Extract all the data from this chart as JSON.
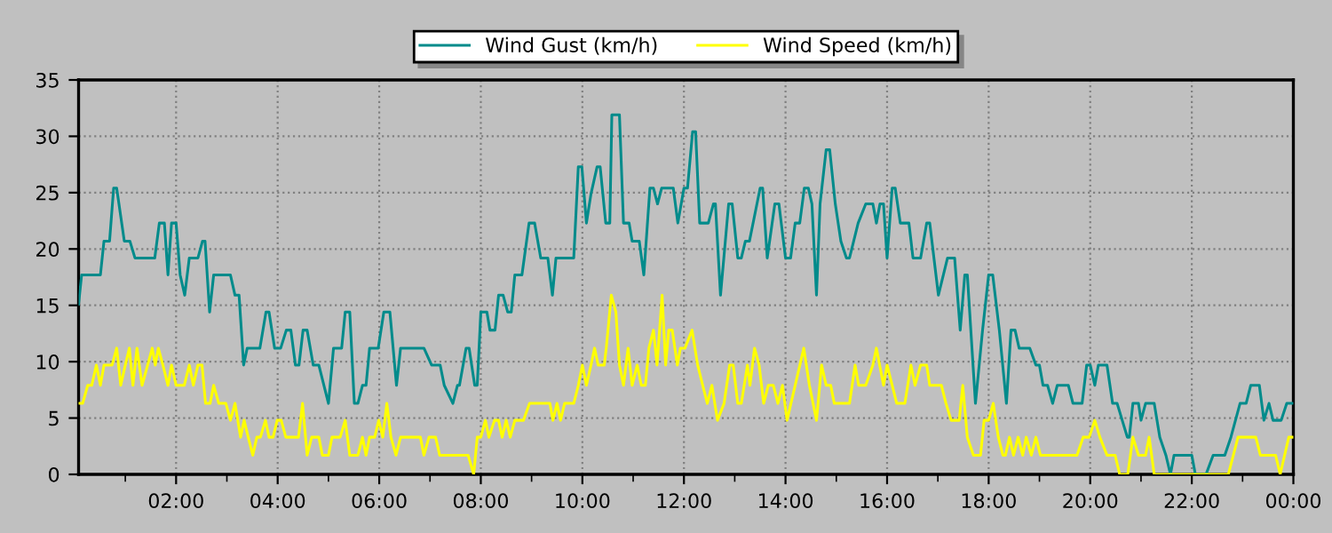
{
  "chart_data": {
    "type": "line",
    "xlim": [
      0.08,
      24
    ],
    "ylim": [
      0,
      35
    ],
    "yticks": [
      0,
      5,
      10,
      15,
      20,
      25,
      30,
      35
    ],
    "xticks": [
      {
        "value": 1,
        "label": null
      },
      {
        "value": 2,
        "label": "02:00"
      },
      {
        "value": 3,
        "label": null
      },
      {
        "value": 4,
        "label": "04:00"
      },
      {
        "value": 5,
        "label": null
      },
      {
        "value": 6,
        "label": "06:00"
      },
      {
        "value": 7,
        "label": null
      },
      {
        "value": 8,
        "label": "08:00"
      },
      {
        "value": 9,
        "label": null
      },
      {
        "value": 10,
        "label": "10:00"
      },
      {
        "value": 11,
        "label": null
      },
      {
        "value": 12,
        "label": "12:00"
      },
      {
        "value": 13,
        "label": null
      },
      {
        "value": 14,
        "label": "14:00"
      },
      {
        "value": 15,
        "label": null
      },
      {
        "value": 16,
        "label": "16:00"
      },
      {
        "value": 17,
        "label": null
      },
      {
        "value": 18,
        "label": "18:00"
      },
      {
        "value": 19,
        "label": null
      },
      {
        "value": 20,
        "label": "20:00"
      },
      {
        "value": 21,
        "label": null
      },
      {
        "value": 22,
        "label": "22:00"
      },
      {
        "value": 23,
        "label": null
      },
      {
        "value": 24,
        "label": "00:00"
      }
    ],
    "grid": true,
    "legend": "top",
    "line_style": "solid",
    "series": [
      {
        "name": "Wind Gust (km/h)",
        "color": "#008b8b",
        "x": [
          0.08,
          0.14,
          0.51,
          0.58,
          0.69,
          0.77,
          0.83,
          0.98,
          1.09,
          1.19,
          1.58,
          1.67,
          1.77,
          1.84,
          1.91,
          2.0,
          2.08,
          2.17,
          2.26,
          2.43,
          2.52,
          2.57,
          2.66,
          2.74,
          3.07,
          3.16,
          3.24,
          3.33,
          3.4,
          3.65,
          3.77,
          3.83,
          3.94,
          4.06,
          4.17,
          4.26,
          4.35,
          4.42,
          4.5,
          4.58,
          4.7,
          4.81,
          5.0,
          5.1,
          5.26,
          5.33,
          5.42,
          5.51,
          5.58,
          5.67,
          5.74,
          5.81,
          5.98,
          6.09,
          6.21,
          6.34,
          6.42,
          6.88,
          7.03,
          7.2,
          7.28,
          7.45,
          7.54,
          7.58,
          7.71,
          7.77,
          7.88,
          7.93,
          8.0,
          8.12,
          8.18,
          8.28,
          8.35,
          8.44,
          8.53,
          8.6,
          8.67,
          8.81,
          8.95,
          9.06,
          9.18,
          9.32,
          9.41,
          9.48,
          9.83,
          9.92,
          9.99,
          10.08,
          10.17,
          10.29,
          10.35,
          10.46,
          10.54,
          10.58,
          10.73,
          10.81,
          10.92,
          10.98,
          11.12,
          11.21,
          11.33,
          11.4,
          11.48,
          11.56,
          11.79,
          11.88,
          12.0,
          12.07,
          12.17,
          12.23,
          12.31,
          12.48,
          12.58,
          12.62,
          12.72,
          12.88,
          12.95,
          13.06,
          13.13,
          13.21,
          13.29,
          13.5,
          13.55,
          13.64,
          13.79,
          13.87,
          14.0,
          14.1,
          14.19,
          14.28,
          14.37,
          14.45,
          14.52,
          14.61,
          14.68,
          14.8,
          14.87,
          14.98,
          15.09,
          15.2,
          15.26,
          15.43,
          15.58,
          15.72,
          15.79,
          15.86,
          15.93,
          16.0,
          16.1,
          16.16,
          16.26,
          16.43,
          16.51,
          16.66,
          16.78,
          16.84,
          17.01,
          17.19,
          17.33,
          17.44,
          17.53,
          17.58,
          17.74,
          17.88,
          18.0,
          18.08,
          18.21,
          18.35,
          18.44,
          18.52,
          18.6,
          18.81,
          18.93,
          19.0,
          19.07,
          19.16,
          19.26,
          19.35,
          19.57,
          19.66,
          19.84,
          19.93,
          20.0,
          20.09,
          20.16,
          20.33,
          20.44,
          20.53,
          20.63,
          20.73,
          20.77,
          20.84,
          20.95,
          21.0,
          21.09,
          21.26,
          21.37,
          21.49,
          21.58,
          21.65,
          22.0,
          22.07,
          22.28,
          22.42,
          22.65,
          22.77,
          22.86,
          22.95,
          23.07,
          23.16,
          23.33,
          23.42,
          23.52,
          23.6,
          23.76,
          23.87,
          23.99
        ],
        "values": [
          15.1,
          17.7,
          17.7,
          20.7,
          20.7,
          25.4,
          25.4,
          20.7,
          20.7,
          19.2,
          19.2,
          22.3,
          22.3,
          17.7,
          22.3,
          22.3,
          17.7,
          15.9,
          19.2,
          19.2,
          20.7,
          20.7,
          14.4,
          17.7,
          17.7,
          15.9,
          15.9,
          9.7,
          11.2,
          11.2,
          14.4,
          14.4,
          11.2,
          11.2,
          12.8,
          12.8,
          9.7,
          9.7,
          12.8,
          12.8,
          9.7,
          9.7,
          6.3,
          11.2,
          11.2,
          14.4,
          14.4,
          6.3,
          6.3,
          7.9,
          7.9,
          11.2,
          11.2,
          14.4,
          14.4,
          7.9,
          11.2,
          11.2,
          9.7,
          9.7,
          7.9,
          6.3,
          7.9,
          7.9,
          11.2,
          11.2,
          7.9,
          7.9,
          14.4,
          14.4,
          12.8,
          12.8,
          15.9,
          15.9,
          14.4,
          14.4,
          17.7,
          17.7,
          22.3,
          22.3,
          19.2,
          19.2,
          15.9,
          19.2,
          19.2,
          27.3,
          27.3,
          22.3,
          24.9,
          27.3,
          27.3,
          22.3,
          22.3,
          31.9,
          31.9,
          22.3,
          22.3,
          20.7,
          20.7,
          17.7,
          25.4,
          25.4,
          24.0,
          25.4,
          25.4,
          22.3,
          25.4,
          25.4,
          30.4,
          30.4,
          22.3,
          22.3,
          24.0,
          24.0,
          15.9,
          24.0,
          24.0,
          19.2,
          19.2,
          20.7,
          20.7,
          25.4,
          25.4,
          19.2,
          24.0,
          24.0,
          19.2,
          19.2,
          22.3,
          22.3,
          25.4,
          25.4,
          24.0,
          15.9,
          24.0,
          28.8,
          28.8,
          24.0,
          20.7,
          19.2,
          19.2,
          22.3,
          24.0,
          24.0,
          22.3,
          24.0,
          24.0,
          19.2,
          25.4,
          25.4,
          22.3,
          22.3,
          19.2,
          19.2,
          22.3,
          22.3,
          15.9,
          19.2,
          19.2,
          12.8,
          17.7,
          17.7,
          6.3,
          12.8,
          17.7,
          17.7,
          12.8,
          6.3,
          12.8,
          12.8,
          11.2,
          11.2,
          9.7,
          9.7,
          7.9,
          7.9,
          6.3,
          7.9,
          7.9,
          6.3,
          6.3,
          9.7,
          9.7,
          7.9,
          9.7,
          9.7,
          6.3,
          6.3,
          4.8,
          3.3,
          3.3,
          6.3,
          6.3,
          4.8,
          6.3,
          6.3,
          3.3,
          1.7,
          0,
          1.7,
          1.7,
          0,
          0,
          1.7,
          1.7,
          3.3,
          4.8,
          6.3,
          6.3,
          7.9,
          7.9,
          4.8,
          6.3,
          4.8,
          4.8,
          6.3,
          6.3
        ]
      },
      {
        "name": "Wind Speed (km/h)",
        "color": "#ffff00",
        "x": [
          0.08,
          0.16,
          0.26,
          0.34,
          0.43,
          0.51,
          0.58,
          0.74,
          0.83,
          0.91,
          1.0,
          1.08,
          1.15,
          1.23,
          1.33,
          1.44,
          1.53,
          1.59,
          1.65,
          1.74,
          1.84,
          1.91,
          2.0,
          2.16,
          2.26,
          2.34,
          2.43,
          2.51,
          2.58,
          2.67,
          2.74,
          2.84,
          2.98,
          3.07,
          3.16,
          3.27,
          3.34,
          3.42,
          3.51,
          3.59,
          3.66,
          3.76,
          3.83,
          3.91,
          3.99,
          4.07,
          4.16,
          4.41,
          4.49,
          4.58,
          4.67,
          4.81,
          4.88,
          5.0,
          5.07,
          5.23,
          5.33,
          5.42,
          5.58,
          5.67,
          5.74,
          5.81,
          5.91,
          5.99,
          6.07,
          6.15,
          6.23,
          6.33,
          6.42,
          6.81,
          6.88,
          6.98,
          7.11,
          7.19,
          7.75,
          7.86,
          7.93,
          8.0,
          8.09,
          8.16,
          8.27,
          8.35,
          8.42,
          8.5,
          8.58,
          8.67,
          8.84,
          8.96,
          9.36,
          9.42,
          9.5,
          9.57,
          9.65,
          9.83,
          9.92,
          10.0,
          10.08,
          10.17,
          10.24,
          10.31,
          10.43,
          10.47,
          10.57,
          10.66,
          10.73,
          10.81,
          10.9,
          10.98,
          11.08,
          11.16,
          11.24,
          11.31,
          11.4,
          11.47,
          11.57,
          11.64,
          11.7,
          11.77,
          11.87,
          11.93,
          12.02,
          12.16,
          12.27,
          12.37,
          12.46,
          12.55,
          12.66,
          12.79,
          12.9,
          12.97,
          13.06,
          13.13,
          13.25,
          13.3,
          13.39,
          13.48,
          13.57,
          13.66,
          13.76,
          13.85,
          13.94,
          14.03,
          14.36,
          14.47,
          14.61,
          14.71,
          14.8,
          14.89,
          14.96,
          15.26,
          15.37,
          15.44,
          15.58,
          15.72,
          15.79,
          15.93,
          16.0,
          16.19,
          16.35,
          16.47,
          16.55,
          16.66,
          16.78,
          16.84,
          17.07,
          17.16,
          17.26,
          17.42,
          17.49,
          17.58,
          17.7,
          17.84,
          17.91,
          18.0,
          18.09,
          18.19,
          18.28,
          18.33,
          18.41,
          18.49,
          18.58,
          18.67,
          18.74,
          18.84,
          18.93,
          19.02,
          19.74,
          19.86,
          19.98,
          20.09,
          20.19,
          20.33,
          20.49,
          20.58,
          20.74,
          20.84,
          20.95,
          21.09,
          21.16,
          21.26,
          22.72,
          22.91,
          23.26,
          23.35,
          23.65,
          23.74,
          23.91,
          23.99
        ],
        "values": [
          6.3,
          6.3,
          7.9,
          7.9,
          9.7,
          7.9,
          9.7,
          9.7,
          11.2,
          7.9,
          9.7,
          11.2,
          7.9,
          11.2,
          7.9,
          9.7,
          11.2,
          9.7,
          11.2,
          9.7,
          7.9,
          9.7,
          7.9,
          7.9,
          9.7,
          7.9,
          9.7,
          9.7,
          6.3,
          6.3,
          7.9,
          6.3,
          6.3,
          4.8,
          6.3,
          3.3,
          4.8,
          3.3,
          1.7,
          3.3,
          3.3,
          4.8,
          3.3,
          3.3,
          4.8,
          4.8,
          3.3,
          3.3,
          6.3,
          1.7,
          3.3,
          3.3,
          1.7,
          1.7,
          3.3,
          3.3,
          4.8,
          1.7,
          1.7,
          3.3,
          1.7,
          3.3,
          3.3,
          4.8,
          3.3,
          6.3,
          3.3,
          1.7,
          3.3,
          3.3,
          1.7,
          3.3,
          3.3,
          1.7,
          1.7,
          0,
          3.3,
          3.3,
          4.8,
          3.3,
          4.8,
          4.8,
          3.3,
          4.8,
          3.3,
          4.8,
          4.8,
          6.3,
          6.3,
          4.8,
          6.3,
          4.8,
          6.3,
          6.3,
          7.9,
          9.7,
          7.9,
          9.7,
          11.2,
          9.7,
          9.7,
          11.2,
          15.9,
          14.4,
          9.7,
          7.9,
          11.2,
          7.9,
          9.7,
          7.9,
          7.9,
          11.2,
          12.8,
          9.7,
          15.9,
          9.7,
          12.8,
          12.8,
          9.7,
          11.2,
          11.2,
          12.8,
          9.7,
          7.9,
          6.3,
          7.9,
          4.8,
          6.3,
          9.7,
          9.7,
          6.3,
          6.3,
          9.7,
          7.9,
          11.2,
          9.7,
          6.3,
          7.9,
          7.9,
          6.3,
          7.9,
          4.8,
          11.2,
          7.9,
          4.8,
          9.7,
          7.9,
          7.9,
          6.3,
          6.3,
          9.7,
          7.9,
          7.9,
          9.7,
          11.2,
          7.9,
          9.7,
          6.3,
          6.3,
          9.7,
          7.9,
          9.7,
          9.7,
          7.9,
          7.9,
          6.3,
          4.8,
          4.8,
          7.9,
          3.3,
          1.7,
          1.7,
          4.8,
          4.8,
          6.3,
          3.3,
          1.7,
          1.7,
          3.3,
          1.7,
          3.3,
          1.7,
          3.3,
          1.7,
          3.3,
          1.7,
          1.7,
          3.3,
          3.3,
          4.8,
          3.3,
          1.7,
          1.7,
          0,
          0,
          3.3,
          1.7,
          1.7,
          3.3,
          0,
          0,
          3.3,
          3.3,
          1.7,
          1.7,
          0,
          3.3,
          3.3
        ]
      }
    ]
  }
}
